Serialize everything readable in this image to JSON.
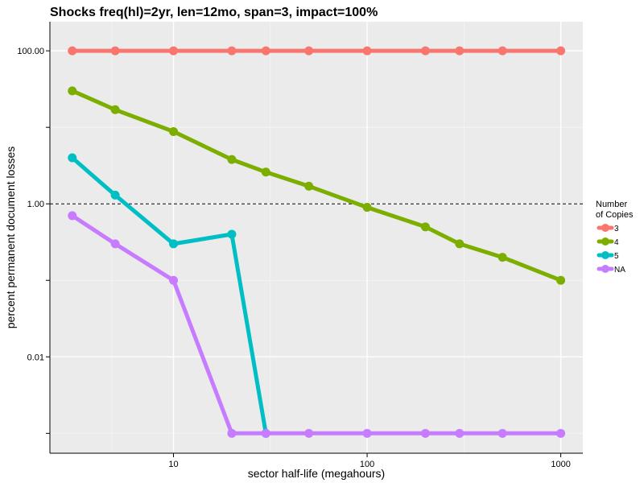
{
  "chart_data": {
    "type": "line",
    "title": "Shocks freq(hl)=2yr, len=12mo, span=3, impact=100%",
    "xlabel": "sector half-life (megahours)",
    "ylabel": "percent permanent document losses",
    "x_scale": "log",
    "y_scale": "log",
    "xlim": [
      2.3,
      1300
    ],
    "ylim": [
      0.00055,
      240
    ],
    "x_ticks": [
      {
        "value": 10,
        "label": "10"
      },
      {
        "value": 100,
        "label": "100"
      },
      {
        "value": 1000,
        "label": "1000"
      }
    ],
    "y_ticks": [
      {
        "value": 100,
        "label": "100.00"
      },
      {
        "value": 1,
        "label": "1.00"
      },
      {
        "value": 0.01,
        "label": "0.01"
      }
    ],
    "y_minor_ticks": [
      10,
      0.1,
      0.001
    ],
    "reference_line": {
      "y": 1,
      "style": "dashed"
    },
    "grid": true,
    "legend": {
      "title_line1": "Number",
      "title_line2": "of Copies",
      "placement": "right"
    },
    "x": [
      3,
      5,
      10,
      20,
      30,
      50,
      100,
      200,
      300,
      500,
      1000
    ],
    "series": [
      {
        "name": "3",
        "color": "#F8766D",
        "values": [
          100,
          100,
          100,
          100,
          100,
          100,
          100,
          100,
          100,
          100,
          100
        ]
      },
      {
        "name": "4",
        "color": "#7CAE00",
        "values": [
          30,
          17,
          8.8,
          3.8,
          2.6,
          1.7,
          0.9,
          0.5,
          0.3,
          0.2,
          0.1
        ]
      },
      {
        "name": "5",
        "color": "#00BFC4",
        "values": [
          4,
          1.3,
          0.3,
          0.4,
          0.001,
          null,
          null,
          null,
          null,
          null,
          null
        ]
      },
      {
        "name": "NA",
        "color": "#C77CFF",
        "values": [
          0.7,
          0.3,
          0.1,
          0.001,
          0.001,
          0.001,
          0.001,
          0.001,
          0.001,
          0.001,
          0.001
        ]
      }
    ]
  }
}
